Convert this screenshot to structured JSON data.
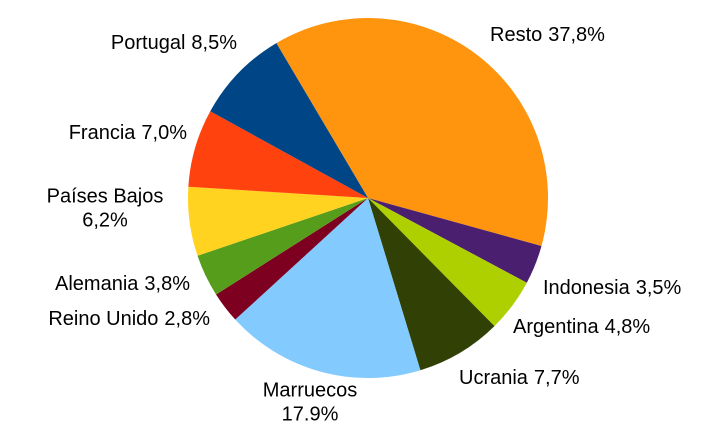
{
  "chart_data": {
    "type": "pie",
    "categories": [
      "Resto",
      "Indonesia",
      "Argentina",
      "Ucrania",
      "Marruecos",
      "Reino Unido",
      "Alemania",
      "Países Bajos",
      "Francia",
      "Portugal"
    ],
    "values": [
      37.8,
      3.5,
      4.8,
      7.7,
      17.9,
      2.8,
      3.8,
      6.2,
      7.0,
      8.5
    ],
    "value_labels": [
      "37,8%",
      "3,5%",
      "4,8%",
      "7,7%",
      "17.9%",
      "2,8%",
      "3,8%",
      "6,2%",
      "7,0%",
      "8,5%"
    ],
    "colors": [
      "#ff950e",
      "#4b1f6f",
      "#aecf00",
      "#314004",
      "#83caff",
      "#7e0021",
      "#579d1c",
      "#ffd320",
      "#ff420e",
      "#004586"
    ]
  }
}
